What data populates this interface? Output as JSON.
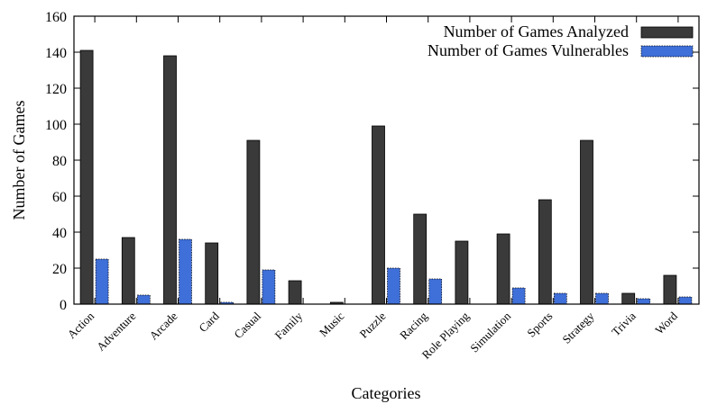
{
  "chart_data": {
    "type": "bar",
    "categories": [
      "Action",
      "Adventure",
      "Arcade",
      "Card",
      "Casual",
      "Family",
      "Music",
      "Puzzle",
      "Racing",
      "Role Playing",
      "Simulation",
      "Sports",
      "Strategy",
      "Trivia",
      "Word"
    ],
    "series": [
      {
        "name": "Number of Games Analyzed",
        "color": "#3a3a3a",
        "values": [
          141,
          37,
          138,
          34,
          91,
          13,
          1,
          99,
          50,
          35,
          39,
          58,
          91,
          6,
          16
        ]
      },
      {
        "name": "Number of Games Vulnerables",
        "color": "#3f6fd8",
        "values": [
          25,
          5,
          36,
          1,
          19,
          0,
          0,
          20,
          14,
          0,
          9,
          6,
          6,
          3,
          4
        ]
      }
    ],
    "xlabel": "Categories",
    "ylabel": "Number of Games",
    "ylim": [
      0,
      160
    ],
    "yticks": [
      0,
      20,
      40,
      60,
      80,
      100,
      120,
      140,
      160
    ],
    "grid": false,
    "legend_position": "top-right"
  }
}
